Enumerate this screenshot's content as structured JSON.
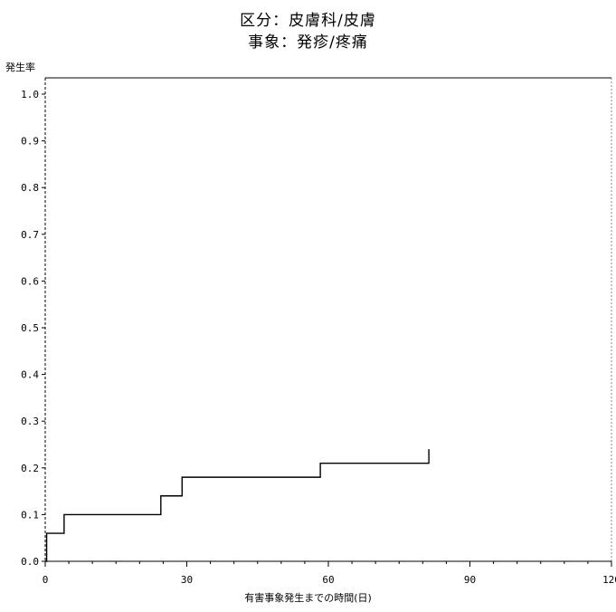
{
  "chart_data": {
    "type": "line",
    "step": true,
    "title": "区分：皮膚科/皮膚",
    "subtitle": "事象：発疹/疼痛",
    "ylabel": "発生率",
    "xlabel": "有害事象発生までの時間(日)",
    "xlim": [
      0,
      120
    ],
    "ylim": [
      0,
      1.0
    ],
    "xticks": [
      0,
      30,
      60,
      90,
      120
    ],
    "yticks": [
      0.0,
      0.1,
      0.2,
      0.3,
      0.4,
      0.5,
      0.6,
      0.7,
      0.8,
      0.9,
      1.0
    ],
    "grid": false,
    "series": [
      {
        "x": [
          0,
          0.3,
          4,
          24,
          24.5,
          28,
          29,
          58,
          58.3,
          81,
          81.3
        ],
        "y": [
          0.0,
          0.06,
          0.1,
          0.1,
          0.14,
          0.14,
          0.18,
          0.18,
          0.21,
          0.21,
          0.24
        ]
      }
    ]
  }
}
